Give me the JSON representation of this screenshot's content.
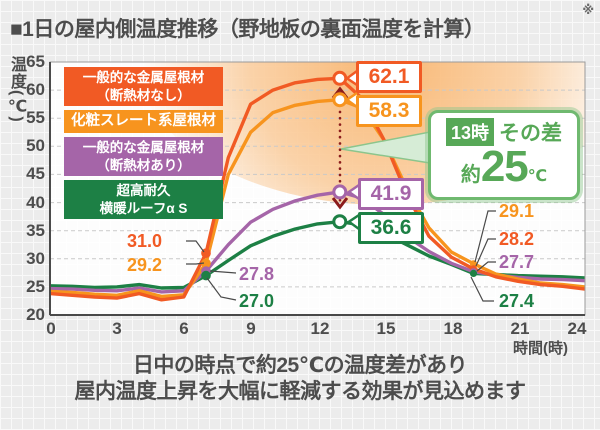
{
  "title": {
    "text": "■1日の屋内側温度推移（野地板の裏面温度を計算）",
    "note": "※"
  },
  "axis": {
    "y_unit": "温度(℃)",
    "x_unit": "時間(時)",
    "y_ticks": [
      "65",
      "60",
      "55",
      "50",
      "45",
      "40",
      "35",
      "30",
      "25",
      "20"
    ],
    "x_ticks": [
      "0",
      "3",
      "6",
      "9",
      "12",
      "15",
      "18",
      "21",
      "24"
    ]
  },
  "legend": [
    {
      "line1": "一般的な金属屋根材",
      "line2": "（断熱材なし）",
      "color": "#f15a24"
    },
    {
      "line1": "化粧スレート系屋根材",
      "line2": "",
      "color": "#f7941e"
    },
    {
      "line1": "一般的な金属屋根材",
      "line2": "（断熱材あり）",
      "color": "#a565a8"
    },
    {
      "line1": "超高耐久",
      "line2": "横暖ルーフα S",
      "color": "#1d8045"
    }
  ],
  "peak_labels": {
    "no_insulation": "62.1",
    "slate": "58.3",
    "insulated": "41.9",
    "premium": "36.6"
  },
  "morning_labels": {
    "no_insulation": "31.0",
    "slate": "29.2",
    "insulated": "27.8",
    "premium": "27.0"
  },
  "evening_labels": {
    "slate": "29.1",
    "no_insulation": "28.2",
    "insulated": "27.7",
    "premium": "27.4"
  },
  "callout": {
    "time_badge": "13時",
    "label": "その差",
    "approx": "約",
    "value": "25",
    "unit": "℃"
  },
  "footer": {
    "line1": "日中の時点で約25℃の温度差があり",
    "line2": "屋内温度上昇を大幅に軽減する効果が見込めます"
  },
  "colors": {
    "no_insulation": "#f15a24",
    "slate": "#f7941e",
    "insulated": "#a565a8",
    "premium": "#1d8045",
    "diff_arrow": "#8b1c1c",
    "callout_green": "#57a857",
    "text_gray": "#4d4d4d"
  },
  "chart_data": {
    "type": "line",
    "title": "1日の屋内側温度推移（野地板の裏面温度を計算）",
    "xlabel": "時間(時)",
    "ylabel": "温度(℃)",
    "xlim": [
      0,
      24
    ],
    "ylim": [
      20,
      65
    ],
    "x": [
      0,
      1,
      2,
      3,
      4,
      5,
      6,
      7,
      8,
      9,
      10,
      11,
      12,
      13,
      14,
      15,
      16,
      17,
      18,
      19,
      20,
      21,
      22,
      23,
      24
    ],
    "series": [
      {
        "name": "一般的な金属屋根材（断熱材なし）",
        "color": "#f15a24",
        "values": [
          23.8,
          23.5,
          23.2,
          23.0,
          23.8,
          22.7,
          23.2,
          31.0,
          48.0,
          57.5,
          60.0,
          61.3,
          61.9,
          62.1,
          58.5,
          51.0,
          41.5,
          34.0,
          30.3,
          28.2,
          26.8,
          26.0,
          25.4,
          25.1,
          24.6
        ]
      },
      {
        "name": "化粧スレート系屋根材",
        "color": "#f7941e",
        "values": [
          24.2,
          24.0,
          23.7,
          23.5,
          24.3,
          23.3,
          23.6,
          29.2,
          45.0,
          52.5,
          56.0,
          57.3,
          58.0,
          58.3,
          56.8,
          51.0,
          42.5,
          35.5,
          31.2,
          29.1,
          27.3,
          26.4,
          25.7,
          25.4,
          25.0
        ]
      },
      {
        "name": "一般的な金属屋根材（断熱材あり）",
        "color": "#a565a8",
        "values": [
          24.7,
          24.6,
          24.4,
          24.3,
          24.8,
          24.1,
          24.3,
          27.8,
          32.5,
          36.5,
          38.8,
          40.3,
          41.3,
          41.9,
          40.8,
          37.8,
          34.0,
          31.3,
          29.2,
          27.7,
          27.1,
          26.7,
          26.4,
          26.3,
          26.1
        ]
      },
      {
        "name": "超高耐久 横暖ルーフα S",
        "color": "#1d8045",
        "values": [
          25.2,
          25.1,
          24.9,
          25.0,
          25.4,
          24.8,
          24.9,
          27.0,
          29.7,
          32.3,
          34.0,
          35.3,
          36.2,
          36.6,
          36.0,
          34.5,
          32.5,
          30.5,
          29.0,
          27.4,
          27.2,
          27.0,
          26.9,
          26.8,
          26.6
        ]
      }
    ],
    "markers": [
      {
        "hour": 13,
        "style": "ring",
        "points": [
          {
            "series": 0,
            "value": 62.1
          },
          {
            "series": 1,
            "value": 58.3
          },
          {
            "series": 2,
            "value": 41.9
          },
          {
            "series": 3,
            "value": 36.6
          }
        ]
      },
      {
        "hour": 7,
        "style": "dot",
        "points": [
          {
            "series": 0,
            "value": 31.0
          },
          {
            "series": 1,
            "value": 29.2
          },
          {
            "series": 2,
            "value": 27.8
          },
          {
            "series": 3,
            "value": 27.0
          }
        ]
      },
      {
        "hour": 19,
        "style": "dot_small",
        "points": [
          {
            "series": 1,
            "value": 29.1
          },
          {
            "series": 0,
            "value": 28.2
          },
          {
            "series": 2,
            "value": 27.7
          },
          {
            "series": 3,
            "value": 27.4
          }
        ]
      }
    ],
    "annotations": {
      "difference_at_13h": "約25℃"
    }
  }
}
